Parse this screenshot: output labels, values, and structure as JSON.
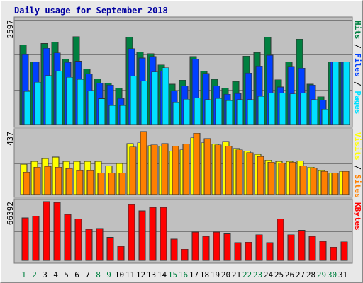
{
  "title": "Daily usage for September 2018",
  "colors": {
    "hits": "#008040",
    "files": "#0040ff",
    "pages": "#00e0ff",
    "visits": "#ffff00",
    "sites": "#ff8000",
    "kbytes": "#ff0000",
    "day_weekday": "#000000",
    "day_weekend": "#008040"
  },
  "chart_data": {
    "type": "bar",
    "title": "Daily usage for September 2018",
    "categories": [
      "1",
      "2",
      "3",
      "4",
      "5",
      "6",
      "7",
      "8",
      "9",
      "10",
      "11",
      "12",
      "13",
      "14",
      "15",
      "16",
      "17",
      "18",
      "19",
      "20",
      "21",
      "22",
      "23",
      "24",
      "25",
      "26",
      "27",
      "28",
      "29",
      "30",
      "31"
    ],
    "weekend_days": [
      "1",
      "2",
      "8",
      "9",
      "15",
      "16",
      "22",
      "23",
      "29",
      "30"
    ],
    "panels": [
      {
        "id": "requests",
        "max_label": "2597",
        "ylim": [
          0,
          2597
        ],
        "side_labels": [
          {
            "text": "Hits",
            "series": "hits"
          },
          {
            "text": "Files",
            "series": "files"
          },
          {
            "text": "Pages",
            "series": "pages"
          }
        ],
        "series": [
          {
            "name": "Hits",
            "key": "hits",
            "values": [
              1970,
              1560,
              2010,
              2050,
              1620,
              2180,
              1370,
              1130,
              1020,
              900,
              2170,
              1800,
              1760,
              1480,
              1000,
              1100,
              1690,
              1320,
              1120,
              910,
              1070,
              1700,
              1790,
              2170,
              1110,
              1550,
              2120,
              1000,
              690,
              1560,
              1560
            ]
          },
          {
            "name": "Files",
            "key": "files",
            "values": [
              1730,
              1550,
              1890,
              1780,
              1540,
              1570,
              1250,
              1020,
              980,
              650,
              1880,
              1650,
              1690,
              1330,
              830,
              950,
              1620,
              1270,
              950,
              750,
              770,
              1280,
              1450,
              1720,
              930,
              1440,
              1400,
              980,
              600,
              1560,
              1560
            ]
          },
          {
            "name": "Pages",
            "key": "pages",
            "values": [
              820,
              1050,
              1210,
              1320,
              1170,
              1120,
              830,
              640,
              470,
              470,
              1200,
              1080,
              1300,
              1410,
              560,
              630,
              660,
              620,
              650,
              590,
              620,
              620,
              700,
              780,
              780,
              760,
              780,
              620,
              380,
              1560,
              1560
            ]
          }
        ]
      },
      {
        "id": "visitors",
        "max_label": "437",
        "ylim": [
          0,
          437
        ],
        "side_labels": [
          {
            "text": "Visits",
            "series": "visits"
          },
          {
            "text": "Sites",
            "series": "sites"
          }
        ],
        "series": [
          {
            "name": "Visits",
            "key": "visits",
            "values": [
              210,
              230,
              250,
              260,
              230,
              230,
              230,
              230,
              200,
              215,
              355,
              360,
              340,
              335,
              300,
              310,
              395,
              360,
              350,
              365,
              320,
              300,
              280,
              240,
              230,
              230,
              235,
              190,
              170,
              150,
              160
            ]
          },
          {
            "name": "Sites",
            "key": "sites",
            "values": [
              155,
              190,
              195,
              190,
              180,
              170,
              170,
              150,
              150,
              150,
              330,
              437,
              345,
              355,
              335,
              350,
              425,
              390,
              345,
              335,
              310,
              290,
              265,
              225,
              220,
              225,
              200,
              185,
              160,
              150,
              160
            ]
          }
        ]
      },
      {
        "id": "volume",
        "max_label": "66392",
        "ylim": [
          0,
          66392
        ],
        "side_labels": [
          {
            "text": "KBytes",
            "series": "kbytes"
          }
        ],
        "series": [
          {
            "name": "KBytes",
            "key": "kbytes",
            "values": [
              48000,
              50000,
              66392,
              65500,
              52000,
              47000,
              35000,
              36000,
              26000,
              16000,
              63000,
              56000,
              60000,
              60000,
              24000,
              12500,
              32000,
              27000,
              32000,
              30000,
              20000,
              20500,
              29000,
              20000,
              47000,
              29000,
              34000,
              27000,
              21500,
              15000,
              21000
            ]
          }
        ]
      }
    ]
  }
}
